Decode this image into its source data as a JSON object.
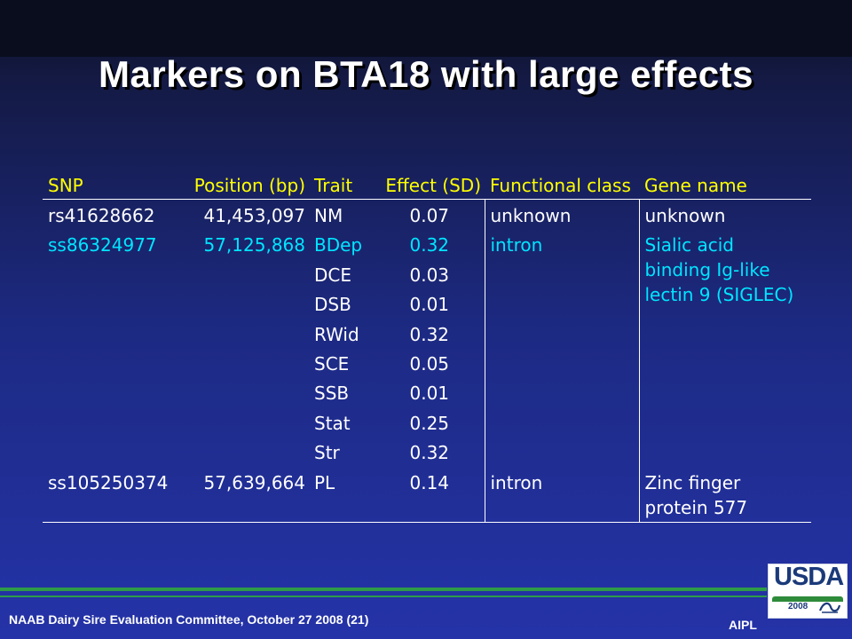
{
  "slide": {
    "title": "Markers on BTA18 with large effects",
    "footer": "NAAB Dairy Sire Evaluation Committee, October 27 2008 (21)",
    "org": "AIPL",
    "logo": {
      "text": "USDA",
      "year": "2008",
      "mark": "ars-icon"
    }
  },
  "table": {
    "headers": [
      "SNP",
      "Position (bp)",
      "Trait",
      "Effect (SD)",
      "Functional class",
      "Gene name"
    ],
    "rows": [
      {
        "snp": "rs41628662",
        "position": "41,453,097",
        "trait": "NM",
        "effect": "0.07",
        "class": "unknown",
        "gene": "unknown"
      },
      {
        "snp": "ss86324977",
        "position": "57,125,868",
        "trait": "BDep",
        "effect": "0.32",
        "class": "intron",
        "gene_lines": [
          "Sialic acid",
          "binding Ig-like",
          "lectin 9 (SIGLEC)"
        ]
      },
      {
        "trait": "DCE",
        "effect": "0.03"
      },
      {
        "trait": "DSB",
        "effect": "0.01"
      },
      {
        "trait": "RWid",
        "effect": "0.32"
      },
      {
        "trait": "SCE",
        "effect": "0.05"
      },
      {
        "trait": "SSB",
        "effect": "0.01"
      },
      {
        "trait": "Stat",
        "effect": "0.25"
      },
      {
        "trait": "Str",
        "effect": "0.32"
      },
      {
        "snp": "ss105250374",
        "position": "57,639,664",
        "trait": "PL",
        "effect": "0.14",
        "class": "intron",
        "gene_lines": [
          "Zinc finger",
          "protein 577"
        ]
      }
    ]
  },
  "colors": {
    "header_text": "#ffff00",
    "highlight_text": "#00e5ff",
    "body_text": "#ffffff",
    "accent_green": "#2e9b48",
    "logo_blue": "#1b3a7a"
  }
}
